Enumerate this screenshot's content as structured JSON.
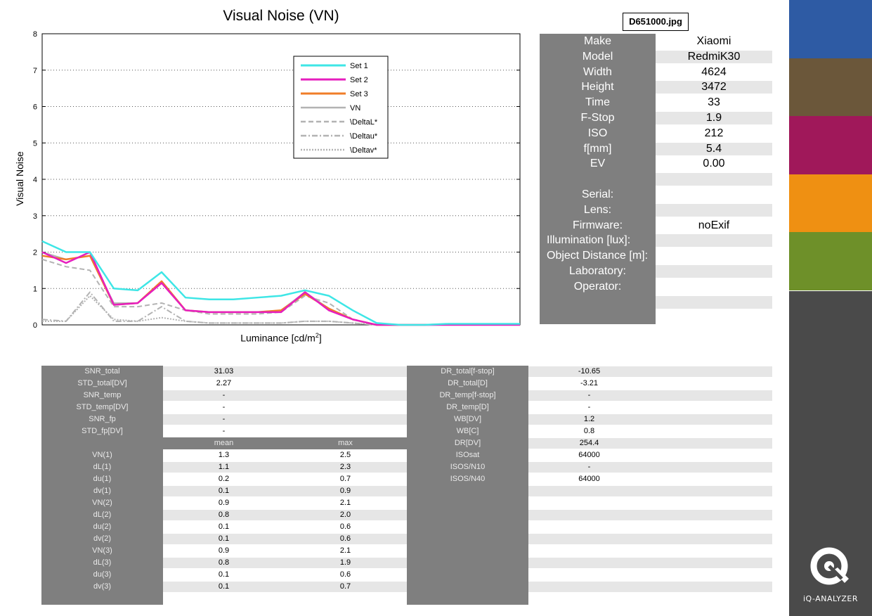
{
  "file_name": "D651000.jpg",
  "chart_data": {
    "type": "line",
    "title": "Visual Noise (VN)",
    "xlabel": "Luminance [cd/m",
    "xlabel_sup": "2",
    "xlabel_end": "]",
    "ylabel": "Visual Noise",
    "ylim": [
      0,
      8
    ],
    "yticks": [
      "0",
      "1",
      "2",
      "3",
      "4",
      "5",
      "6",
      "7",
      "8"
    ],
    "grid": true,
    "legend_position": "top-center",
    "x": [
      0,
      1,
      2,
      3,
      4,
      5,
      6,
      7,
      8,
      9,
      10,
      11,
      12,
      13,
      14,
      15,
      16,
      17,
      18,
      19,
      20
    ],
    "series": [
      {
        "name": "Set 1",
        "color": "#3ee6e6",
        "style": "solid",
        "width": 2.5,
        "values": [
          2.3,
          2.0,
          2.0,
          1.0,
          0.95,
          1.45,
          0.75,
          0.7,
          0.7,
          0.75,
          0.8,
          0.95,
          0.8,
          0.4,
          0.05,
          0.0,
          0.0,
          0.03,
          0.03,
          0.03,
          0.03
        ]
      },
      {
        "name": "Set 2",
        "color": "#e61ebe",
        "style": "solid",
        "width": 2.5,
        "values": [
          2.0,
          1.7,
          2.0,
          0.55,
          0.6,
          1.15,
          0.4,
          0.35,
          0.35,
          0.35,
          0.35,
          0.9,
          0.4,
          0.15,
          0.0,
          0.0,
          0.0,
          0.0,
          0.0,
          0.0,
          0.0
        ]
      },
      {
        "name": "Set 3",
        "color": "#f07d28",
        "style": "solid",
        "width": 2.5,
        "values": [
          1.9,
          1.8,
          1.9,
          0.55,
          0.6,
          1.2,
          0.4,
          0.35,
          0.35,
          0.35,
          0.4,
          0.85,
          0.45,
          0.15,
          0.0,
          0.0,
          0.0,
          0.02,
          0.02,
          0.02,
          0.02
        ]
      },
      {
        "name": "VN",
        "color": "#b3b3b3",
        "style": "solid",
        "width": 2,
        "values": [
          2.0,
          1.8,
          1.9,
          0.6,
          0.6,
          1.2,
          0.4,
          0.35,
          0.35,
          0.35,
          0.4,
          0.9,
          0.45,
          0.15,
          0.0,
          0.0,
          0.0,
          0.0,
          0.0,
          0.0,
          0.0
        ]
      },
      {
        "name": "\\DeltaL*",
        "color": "#b3b3b3",
        "style": "dashed",
        "width": 2,
        "values": [
          1.8,
          1.6,
          1.5,
          0.5,
          0.5,
          0.6,
          0.4,
          0.3,
          0.3,
          0.3,
          0.35,
          0.8,
          0.6,
          0.15,
          0.0,
          0.0,
          0.0,
          0.0,
          0.0,
          0.0,
          0.0
        ]
      },
      {
        "name": "\\Deltau*",
        "color": "#b3b3b3",
        "style": "dashdot",
        "width": 2,
        "values": [
          0.15,
          0.1,
          0.9,
          0.1,
          0.1,
          0.5,
          0.1,
          0.05,
          0.05,
          0.05,
          0.05,
          0.1,
          0.1,
          0.05,
          0.0,
          0.0,
          0.0,
          0.0,
          0.0,
          0.0,
          0.0
        ]
      },
      {
        "name": "\\Deltav*",
        "color": "#b3b3b3",
        "style": "dotted",
        "width": 2,
        "values": [
          0.1,
          0.1,
          0.8,
          0.15,
          0.1,
          0.2,
          0.1,
          0.05,
          0.05,
          0.05,
          0.05,
          0.1,
          0.1,
          0.05,
          0.0,
          0.0,
          0.0,
          0.0,
          0.0,
          0.0,
          0.0
        ]
      }
    ]
  },
  "exif": [
    {
      "label": "Make",
      "value": "Xiaomi"
    },
    {
      "label": "Model",
      "value": "RedmiK30"
    },
    {
      "label": "Width",
      "value": "4624"
    },
    {
      "label": "Height",
      "value": "3472"
    },
    {
      "label": "Time",
      "value": "33"
    },
    {
      "label": "F-Stop",
      "value": "1.9"
    },
    {
      "label": "ISO",
      "value": "212"
    },
    {
      "label": "f[mm]",
      "value": "5.4"
    },
    {
      "label": "EV",
      "value": "0.00"
    },
    {
      "label": "",
      "value": ""
    },
    {
      "label": "Serial:",
      "value": ""
    },
    {
      "label": "Lens:",
      "value": ""
    },
    {
      "label": "Firmware:",
      "value": "noExif"
    },
    {
      "label": "Illumination [lux]:",
      "value": ""
    },
    {
      "label": "Object Distance [m]:",
      "value": ""
    },
    {
      "label": "Laboratory:",
      "value": ""
    },
    {
      "label": "Operator:",
      "value": ""
    },
    {
      "label": "",
      "value": ""
    }
  ],
  "left_table": [
    {
      "label": "SNR_total",
      "c1": "31.03",
      "c2": ""
    },
    {
      "label": "STD_total[DV]",
      "c1": "2.27",
      "c2": ""
    },
    {
      "label": "SNR_temp",
      "c1": "-",
      "c2": ""
    },
    {
      "label": "STD_temp[DV]",
      "c1": "-",
      "c2": ""
    },
    {
      "label": "SNR_fp",
      "c1": "-",
      "c2": ""
    },
    {
      "label": "STD_fp[DV]",
      "c1": "-",
      "c2": ""
    },
    {
      "label": "",
      "c1": "mean",
      "c2": "max",
      "header": true
    },
    {
      "label": "VN(1)",
      "c1": "1.3",
      "c2": "2.5"
    },
    {
      "label": "dL(1)",
      "c1": "1.1",
      "c2": "2.3"
    },
    {
      "label": "du(1)",
      "c1": "0.2",
      "c2": "0.7"
    },
    {
      "label": "dv(1)",
      "c1": "0.1",
      "c2": "0.9"
    },
    {
      "label": "VN(2)",
      "c1": "0.9",
      "c2": "2.1"
    },
    {
      "label": "dL(2)",
      "c1": "0.8",
      "c2": "2.0"
    },
    {
      "label": "du(2)",
      "c1": "0.1",
      "c2": "0.6"
    },
    {
      "label": "dv(2)",
      "c1": "0.1",
      "c2": "0.6"
    },
    {
      "label": "VN(3)",
      "c1": "0.9",
      "c2": "2.1"
    },
    {
      "label": "dL(3)",
      "c1": "0.8",
      "c2": "1.9"
    },
    {
      "label": "du(3)",
      "c1": "0.1",
      "c2": "0.6"
    },
    {
      "label": "dv(3)",
      "c1": "0.1",
      "c2": "0.7"
    }
  ],
  "right_table": [
    {
      "label": "DR_total[f-stop]",
      "c1": "-10.65"
    },
    {
      "label": "DR_total[D]",
      "c1": "-3.21"
    },
    {
      "label": "DR_temp[f-stop]",
      "c1": "-"
    },
    {
      "label": "DR_temp[D]",
      "c1": "-"
    },
    {
      "label": "WB[DV]",
      "c1": "1.2"
    },
    {
      "label": "WB[C]",
      "c1": "0.8"
    },
    {
      "label": "DR[DV]",
      "c1": "254.4"
    },
    {
      "label": "ISOsat",
      "c1": "64000"
    },
    {
      "label": "ISOS/N10",
      "c1": "-"
    },
    {
      "label": "ISOS/N40",
      "c1": "64000"
    },
    {
      "label": "",
      "c1": ""
    },
    {
      "label": "",
      "c1": ""
    },
    {
      "label": "",
      "c1": ""
    },
    {
      "label": "",
      "c1": ""
    },
    {
      "label": "",
      "c1": ""
    },
    {
      "label": "",
      "c1": ""
    },
    {
      "label": "",
      "c1": ""
    },
    {
      "label": "",
      "c1": ""
    },
    {
      "label": "",
      "c1": ""
    }
  ],
  "swatches": [
    "#2e5ba4",
    "#6b573a",
    "#a0185a",
    "#ef9012",
    "#6e9029"
  ],
  "brand": {
    "name": "iQ-ANALYZER",
    "icon": "iq-logo-icon",
    "panel_color": "#4a4a4a"
  }
}
